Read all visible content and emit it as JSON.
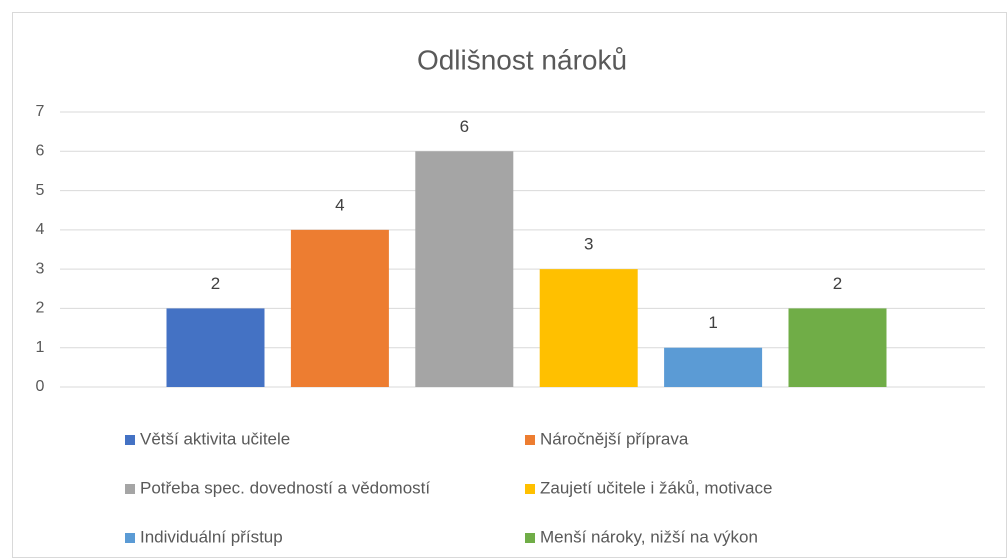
{
  "chart_data": {
    "type": "bar",
    "title": "Odlišnost nároků",
    "categories": [
      null
    ],
    "series": [
      {
        "name": "Větší aktivita učitele",
        "color": "#4472c4",
        "values": [
          2
        ]
      },
      {
        "name": "Náročnější příprava",
        "color": "#ed7d31",
        "values": [
          4
        ]
      },
      {
        "name": "Potřeba spec. dovedností a vědomostí",
        "color": "#a5a5a5",
        "values": [
          6
        ]
      },
      {
        "name": "Zaujetí učitele i žáků, motivace",
        "color": "#ffc000",
        "values": [
          3
        ]
      },
      {
        "name": "Individuální přístup",
        "color": "#5b9bd5",
        "values": [
          1
        ]
      },
      {
        "name": "Menší nároky, nižší na výkon",
        "color": "#70ad47",
        "values": [
          2
        ]
      }
    ],
    "ylim": [
      0,
      7
    ],
    "yticks": [
      0,
      1,
      2,
      3,
      4,
      5,
      6,
      7
    ],
    "grid": true,
    "legend": "bottom"
  }
}
